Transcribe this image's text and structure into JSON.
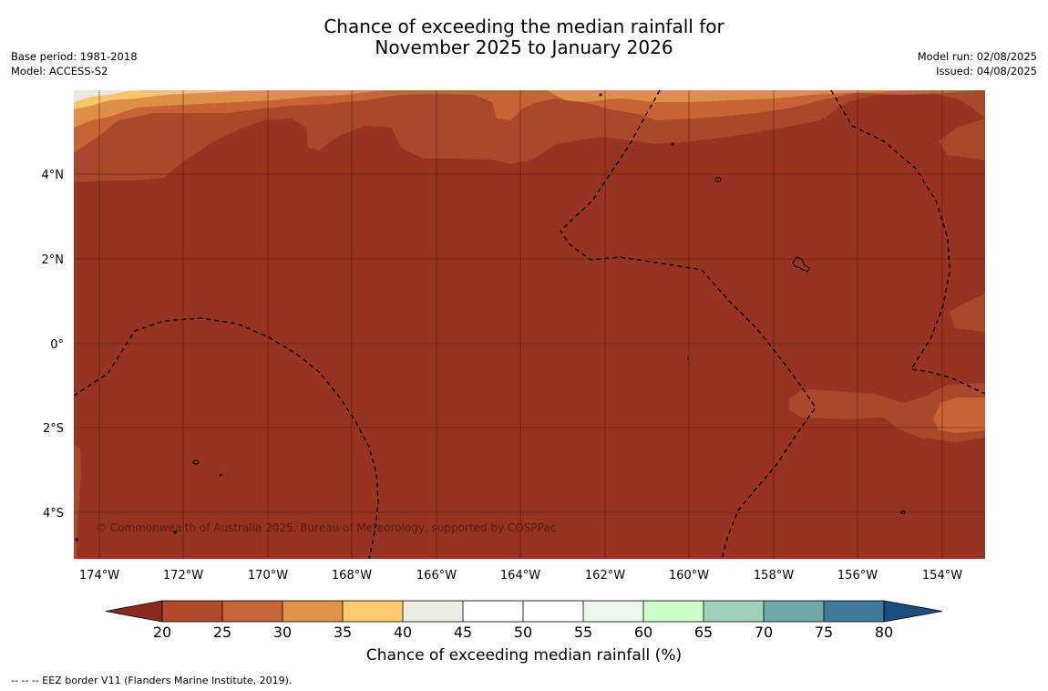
{
  "title_line1": "Chance of exceeding the median rainfall for",
  "title_line2": "November 2025 to January 2026",
  "base_period": "Base period: 1981-2018",
  "model": "Model: ACCESS-S2",
  "model_run": "Model run: 02/08/2025",
  "issued": "Issued: 04/08/2025",
  "copyright": "© Commonwealth of Australia 2025, Bureau of Meteorology, supported by COSPPac",
  "footnote": "--  --  -- EEZ border V11 (Flanders Marine Institute, 2019).",
  "colorbar_label": "Chance of exceeding median rainfall (%)",
  "lat_labels": [
    "4°N",
    "2°N",
    "0°",
    "2°S",
    "4°S"
  ],
  "lon_labels": [
    "174°W",
    "172°W",
    "170°W",
    "168°W",
    "166°W",
    "164°W",
    "162°W",
    "160°W",
    "158°W",
    "156°W",
    "154°W"
  ],
  "colorbar_ticks": [
    "20",
    "25",
    "30",
    "35",
    "40",
    "45",
    "50",
    "55",
    "60",
    "65",
    "70",
    "75",
    "80"
  ],
  "colorbar_colors": [
    "#8b2a1a",
    "#b04a2a",
    "#c8643a",
    "#e0924a",
    "#fecb6a",
    "#eeebe4",
    "#ffffff",
    "#ffffff",
    "#edf7ea",
    "#ccffcc",
    "#a0d2bb",
    "#72a8a8",
    "#3f7a9a",
    "#1a4d80"
  ],
  "map_colors": {
    "lt20": "#973321",
    "b20_25": "#a9482a",
    "b25_30": "#c76335",
    "b30_35": "#dd8f45",
    "b35_40": "#f9c56a",
    "b40_45": "#eae7e2"
  }
}
